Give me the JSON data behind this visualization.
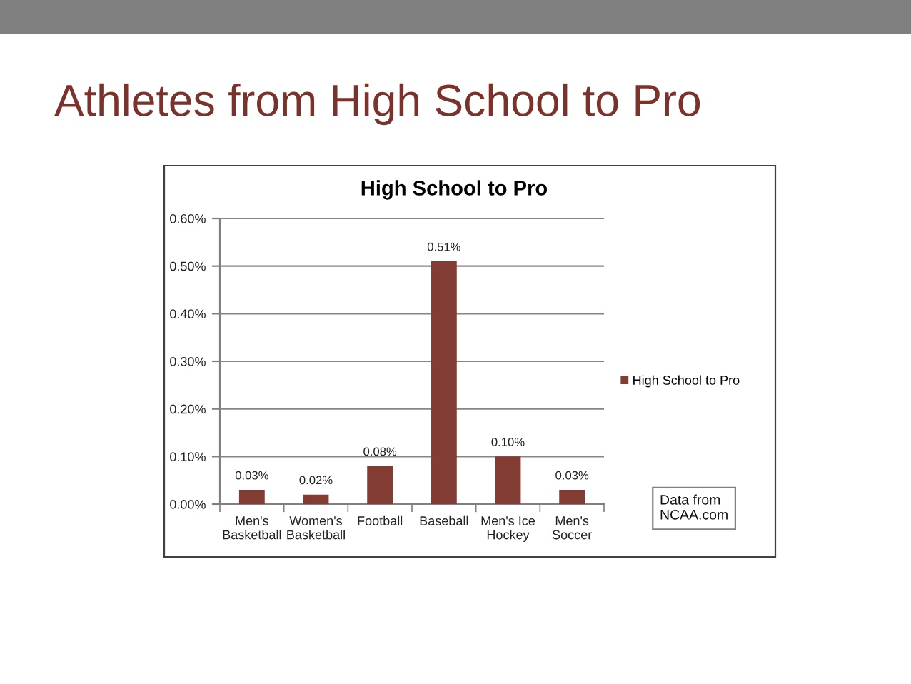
{
  "chart_data": {
    "type": "bar",
    "title": "Athletes from High School to Pro",
    "subtitle": "High School to Pro",
    "categories": [
      "Men's\nBasketball",
      "Women's\nBasketball",
      "Football",
      "Baseball",
      "Men's Ice\nHockey",
      "Men's\nSoccer"
    ],
    "series": [
      {
        "name": "High School to Pro",
        "color": "#833c33",
        "values": [
          0.03,
          0.02,
          0.08,
          0.51,
          0.1,
          0.03
        ],
        "value_labels": [
          "0.03%",
          "0.02%",
          "0.08%",
          "0.51%",
          "0.10%",
          "0.03%"
        ]
      }
    ],
    "ylim": [
      0,
      0.6
    ],
    "yticks": [
      {
        "value": 0,
        "label": "0.00%"
      },
      {
        "value": 0.1,
        "label": "0.10%"
      },
      {
        "value": 0.2,
        "label": "0.20%"
      },
      {
        "value": 0.3,
        "label": "0.30%"
      },
      {
        "value": 0.4,
        "label": "0.40%"
      },
      {
        "value": 0.5,
        "label": "0.50%"
      },
      {
        "value": 0.6,
        "label": "0.60%"
      }
    ],
    "grid": "y",
    "legend": "right",
    "annotations": [
      "Data from\nNCAA.com"
    ]
  }
}
